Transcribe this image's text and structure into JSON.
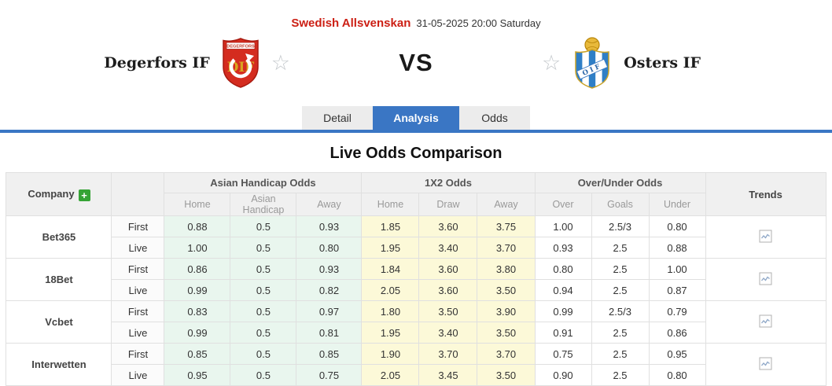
{
  "header": {
    "league": "Swedish Allsvenskan",
    "datetime": "31-05-2025 20:00 Saturday"
  },
  "match": {
    "home_team": "Degerfors IF",
    "away_team": "Osters IF",
    "vs_label": "VS",
    "home_badge_text": "DEGERFORS",
    "home_badge_monogram": "DIF",
    "away_badge_banner": "OIF"
  },
  "icons": {
    "favorite_star": "☆",
    "add_company": "+",
    "trend_chart": "line-chart-icon"
  },
  "tabs": [
    {
      "label": "Detail",
      "active": false
    },
    {
      "label": "Analysis",
      "active": true
    },
    {
      "label": "Odds",
      "active": false
    }
  ],
  "section_title": "Live Odds Comparison",
  "odds_table": {
    "company_header": "Company",
    "trends_header": "Trends",
    "stage_labels": [
      "First",
      "Live"
    ],
    "groups": [
      {
        "title": "Asian Handicap Odds",
        "cols": [
          "Home",
          "Asian Handicap",
          "Away"
        ]
      },
      {
        "title": "1X2 Odds",
        "cols": [
          "Home",
          "Draw",
          "Away"
        ]
      },
      {
        "title": "Over/Under Odds",
        "cols": [
          "Over",
          "Goals",
          "Under"
        ]
      }
    ],
    "rows": [
      {
        "company": "Bet365",
        "first": {
          "ah": [
            "0.88",
            "0.5",
            "0.93"
          ],
          "x12": [
            "1.85",
            "3.60",
            "3.75"
          ],
          "ou": [
            "1.00",
            "2.5/3",
            "0.80"
          ]
        },
        "live": {
          "ah": [
            "1.00",
            "0.5",
            "0.80"
          ],
          "x12": [
            "1.95",
            "3.40",
            "3.70"
          ],
          "ou": [
            "0.93",
            "2.5",
            "0.88"
          ]
        }
      },
      {
        "company": "18Bet",
        "first": {
          "ah": [
            "0.86",
            "0.5",
            "0.93"
          ],
          "x12": [
            "1.84",
            "3.60",
            "3.80"
          ],
          "ou": [
            "0.80",
            "2.5",
            "1.00"
          ]
        },
        "live": {
          "ah": [
            "0.99",
            "0.5",
            "0.82"
          ],
          "x12": [
            "2.05",
            "3.60",
            "3.50"
          ],
          "ou": [
            "0.94",
            "2.5",
            "0.87"
          ]
        }
      },
      {
        "company": "Vcbet",
        "first": {
          "ah": [
            "0.83",
            "0.5",
            "0.97"
          ],
          "x12": [
            "1.80",
            "3.50",
            "3.90"
          ],
          "ou": [
            "0.99",
            "2.5/3",
            "0.79"
          ]
        },
        "live": {
          "ah": [
            "0.99",
            "0.5",
            "0.81"
          ],
          "x12": [
            "1.95",
            "3.40",
            "3.50"
          ],
          "ou": [
            "0.91",
            "2.5",
            "0.86"
          ]
        }
      },
      {
        "company": "Interwetten",
        "first": {
          "ah": [
            "0.85",
            "0.5",
            "0.85"
          ],
          "x12": [
            "1.90",
            "3.70",
            "3.70"
          ],
          "ou": [
            "0.75",
            "2.5",
            "0.95"
          ]
        },
        "live": {
          "ah": [
            "0.95",
            "0.5",
            "0.75"
          ],
          "x12": [
            "2.05",
            "3.45",
            "3.50"
          ],
          "ou": [
            "0.90",
            "2.5",
            "0.80"
          ]
        }
      }
    ]
  },
  "colors": {
    "accent_blue": "#3a76c4",
    "league_red": "#cc1f14",
    "ah_bg": "#e9f6ee",
    "x12_bg": "#fcf9d8",
    "header_bg": "#f0f0f0",
    "plus_green": "#35a335",
    "home_badge_red": "#d42c1f",
    "away_badge_blue": "#2f7fc6",
    "away_badge_gold": "#e8b93a"
  }
}
